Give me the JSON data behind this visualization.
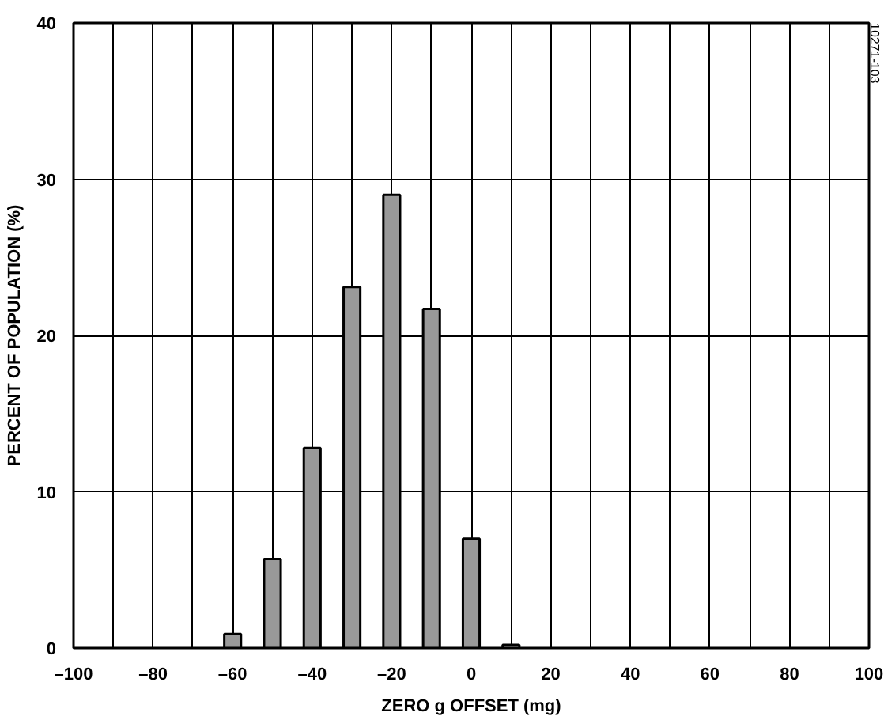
{
  "chart_data": {
    "type": "bar",
    "xlabel": "ZERO g OFFSET (mg)",
    "ylabel": "PERCENT OF POPULATION (%)",
    "x": [
      -60,
      -50,
      -40,
      -30,
      -20,
      -10,
      0,
      10
    ],
    "values": [
      0.9,
      5.7,
      12.8,
      23.1,
      29.0,
      21.7,
      7.0,
      0.2
    ],
    "color": "#999999",
    "xlim": [
      -100,
      100
    ],
    "ylim": [
      0,
      40
    ],
    "xticks": [
      {
        "value": -100,
        "label": "–100"
      },
      {
        "value": -90,
        "label": null
      },
      {
        "value": -80,
        "label": "–80"
      },
      {
        "value": -70,
        "label": null
      },
      {
        "value": -60,
        "label": "–60"
      },
      {
        "value": -50,
        "label": null
      },
      {
        "value": -40,
        "label": "–40"
      },
      {
        "value": -30,
        "label": null
      },
      {
        "value": -20,
        "label": "–20"
      },
      {
        "value": -10,
        "label": null
      },
      {
        "value": 0,
        "label": "0"
      },
      {
        "value": 10,
        "label": null
      },
      {
        "value": 20,
        "label": "20"
      },
      {
        "value": 30,
        "label": null
      },
      {
        "value": 40,
        "label": "40"
      },
      {
        "value": 50,
        "label": null
      },
      {
        "value": 60,
        "label": "60"
      },
      {
        "value": 70,
        "label": null
      },
      {
        "value": 80,
        "label": "80"
      },
      {
        "value": 90,
        "label": null
      },
      {
        "value": 100,
        "label": "100"
      }
    ],
    "yticks": [
      0,
      10,
      20,
      30,
      40
    ],
    "grid": true,
    "annotations": [
      "10271-103"
    ]
  }
}
